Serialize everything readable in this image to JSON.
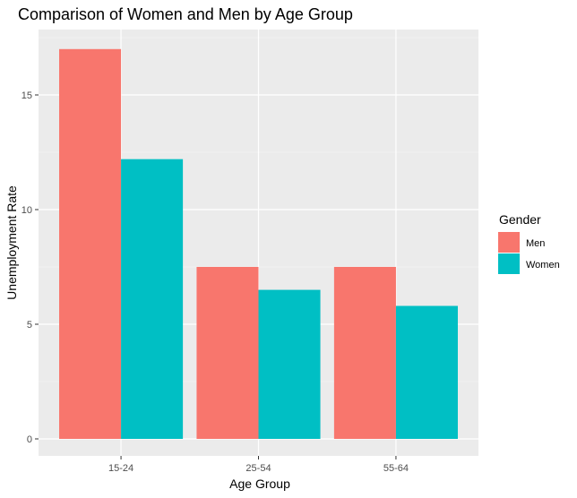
{
  "chart_data": {
    "type": "bar",
    "title": "Comparison of Women and Men by Age Group",
    "xlabel": "Age Group",
    "ylabel": "Unemployment Rate",
    "categories": [
      "15-24",
      "25-54",
      "55-64"
    ],
    "series": [
      {
        "name": "Men",
        "values": [
          17.0,
          7.5,
          7.5
        ],
        "color": "#F8766D"
      },
      {
        "name": "Women",
        "values": [
          12.2,
          6.5,
          5.8
        ],
        "color": "#00BFC4"
      }
    ],
    "ylim": [
      0,
      17.85
    ],
    "yticks": [
      0,
      5,
      10,
      15
    ],
    "grid": true,
    "legend": {
      "title": "Gender",
      "placement": "right"
    }
  }
}
